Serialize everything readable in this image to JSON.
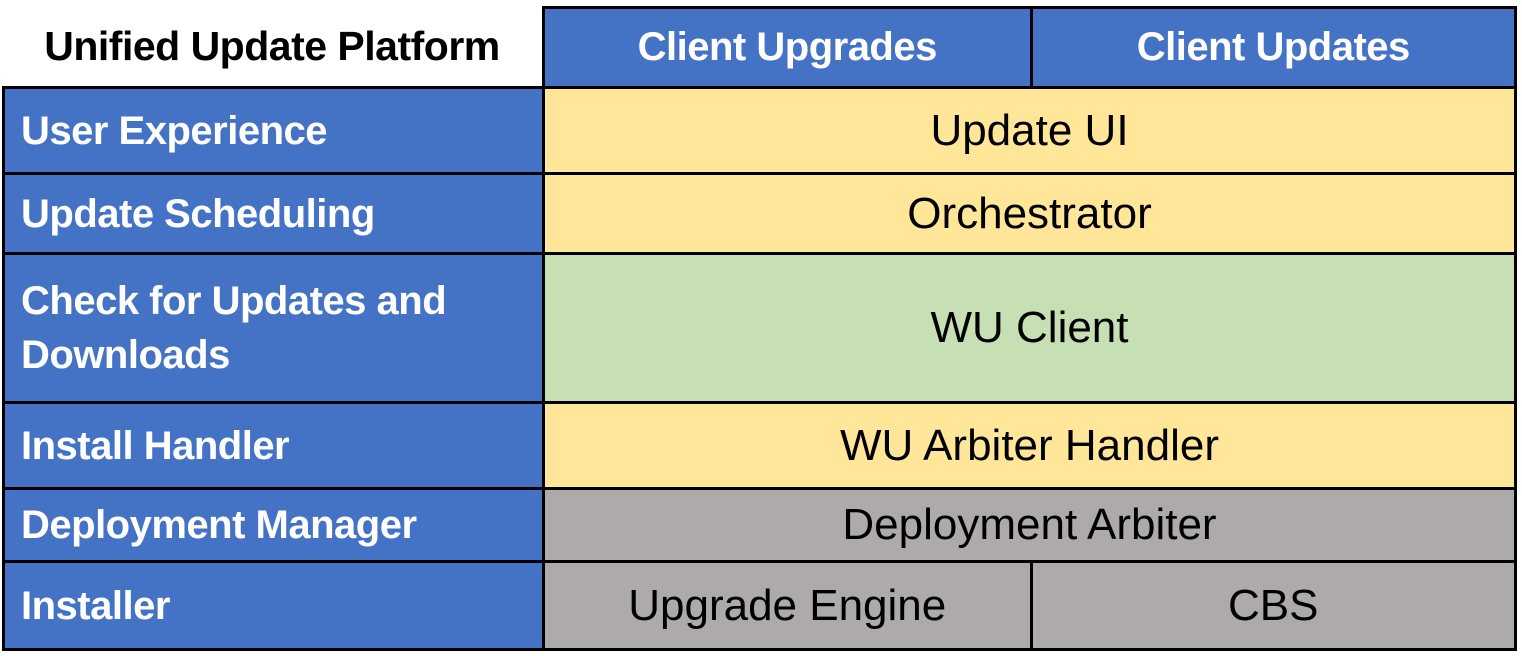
{
  "title": "Unified Update Platform",
  "columns": [
    {
      "label": "Client Upgrades"
    },
    {
      "label": "Client Updates"
    }
  ],
  "rows": [
    {
      "label": "User Experience",
      "component": "Update UI",
      "color": "yellow"
    },
    {
      "label": "Update Scheduling",
      "component": "Orchestrator",
      "color": "yellow"
    },
    {
      "label": "Check for Updates and Downloads",
      "component": "WU Client",
      "color": "green"
    },
    {
      "label": "Install Handler",
      "component": "WU Arbiter Handler",
      "color": "yellow"
    },
    {
      "label": "Deployment Manager",
      "component": "Deployment Arbiter",
      "color": "gray"
    },
    {
      "label": "Installer",
      "components": [
        {
          "label": "Upgrade Engine",
          "color": "gray"
        },
        {
          "label": "CBS",
          "color": "gray"
        }
      ]
    }
  ],
  "colors": {
    "blue": "#4472C4",
    "yellow": "#FFE699",
    "green": "#C6E0B4",
    "gray": "#AEAAAA",
    "border": "#000000",
    "title_text": "#000000",
    "header_text": "#FFFFFF",
    "component_text": "#000000",
    "background": "#FFFFFF"
  }
}
